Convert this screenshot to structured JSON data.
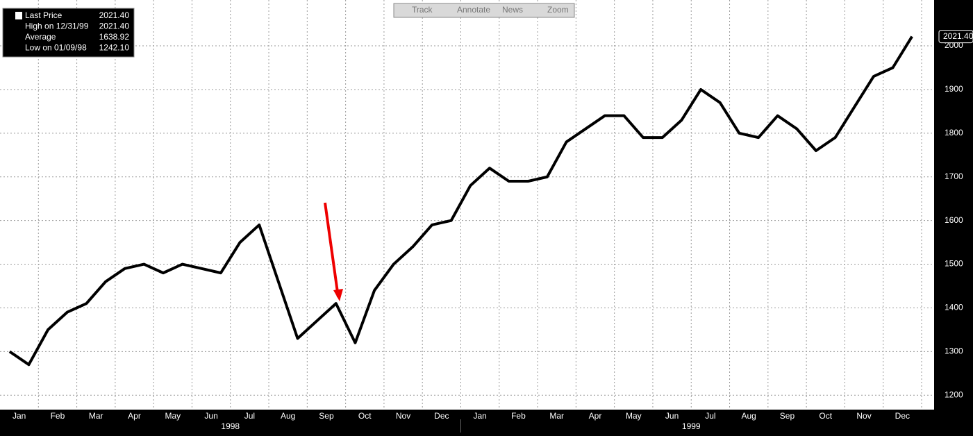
{
  "chart_data": {
    "type": "line",
    "toolbar": [
      "Track",
      "Annotate",
      "News",
      "Zoom"
    ],
    "legend": [
      {
        "label": "Last Price",
        "value": "2021.40"
      },
      {
        "label": "High on 12/31/99",
        "value": "2021.40"
      },
      {
        "label": "Average",
        "value": "1638.92"
      },
      {
        "label": "Low on 01/09/98",
        "value": "1242.10"
      }
    ],
    "last_price_tag": "2021.40",
    "categories": [
      null,
      "Jan",
      null,
      "Feb",
      null,
      "Mar",
      null,
      "Apr",
      null,
      "May",
      null,
      "Jun",
      null,
      "Jul",
      null,
      "Aug",
      null,
      "Sep",
      null,
      "Oct",
      null,
      "Nov",
      null,
      "Dec",
      null,
      "Jan",
      null,
      "Feb",
      null,
      "Mar",
      null,
      "Apr",
      null,
      "May",
      null,
      "Jun",
      null,
      "Jul",
      null,
      "Aug",
      null,
      "Sep",
      null,
      "Oct",
      null,
      "Nov",
      null,
      "Dec"
    ],
    "year_labels": [
      "1998",
      "1999"
    ],
    "series": [
      {
        "color": "#000000",
        "values": [
          1300,
          1270,
          1350,
          1390,
          1410,
          1460,
          1490,
          1500,
          1480,
          1500,
          1490,
          1480,
          1550,
          1590,
          1460,
          1330,
          1370,
          1410,
          1320,
          1440,
          1500,
          1540,
          1590,
          1600,
          1680,
          1720,
          1690,
          1690,
          1700,
          1780,
          1810,
          1840,
          1840,
          1790,
          1790,
          1830,
          1900,
          1870,
          1800,
          1790,
          1840,
          1810,
          1760,
          1790,
          1860,
          1930,
          1950,
          2021.4
        ]
      }
    ],
    "ylim": [
      1167,
      2105
    ],
    "yticks": [
      1200,
      1300,
      1400,
      1500,
      1600,
      1700,
      1800,
      1900,
      2000
    ],
    "grid": true
  }
}
